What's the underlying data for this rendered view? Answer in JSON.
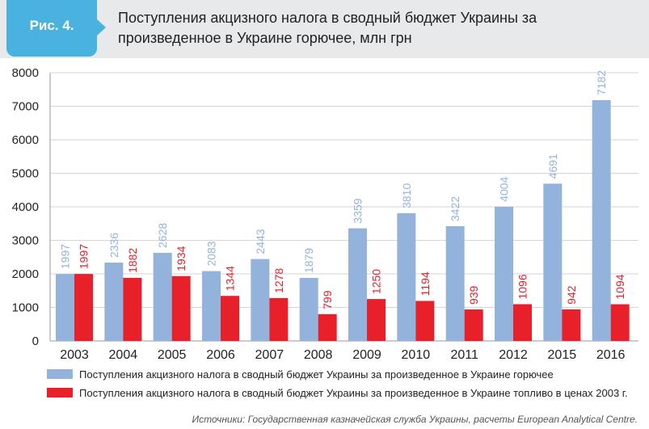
{
  "figure": {
    "label": "Рис. 4.",
    "title": "Поступления акцизного налога в сводный бюджет Украины за произведенное в Украине горючее, млн грн"
  },
  "source": "Источники: Государственная казначейская служба Украины, расчеты European Analytical Centre.",
  "colors": {
    "badge": "#49b2df",
    "series_nominal": "#94b3dc",
    "series_real": "#e8202a"
  },
  "chart_data": {
    "type": "bar",
    "categories": [
      "2003",
      "2004",
      "2005",
      "2006",
      "2007",
      "2008",
      "2009",
      "2010",
      "2011",
      "2012",
      "2015",
      "2016"
    ],
    "series": [
      {
        "name": "Поступления акцизного налога в сводный бюджет Украины за произведенное в Украине горючее",
        "color": "#94b3dc",
        "values": [
          1997,
          2336,
          2628,
          2083,
          2443,
          1879,
          3359,
          3810,
          3422,
          4004,
          4691,
          7182
        ]
      },
      {
        "name": "Поступления акцизного налога в сводный бюджет Украины за произведенное в Украине топливо в ценах 2003 г.",
        "color": "#e8202a",
        "values": [
          1997,
          1882,
          1934,
          1344,
          1278,
          799,
          1250,
          1194,
          939,
          1096,
          942,
          1094
        ]
      }
    ],
    "ylim": [
      0,
      8000
    ],
    "yticks": [
      0,
      1000,
      2000,
      3000,
      4000,
      5000,
      6000,
      7000,
      8000
    ],
    "grid": true,
    "legend_position": "bottom"
  }
}
